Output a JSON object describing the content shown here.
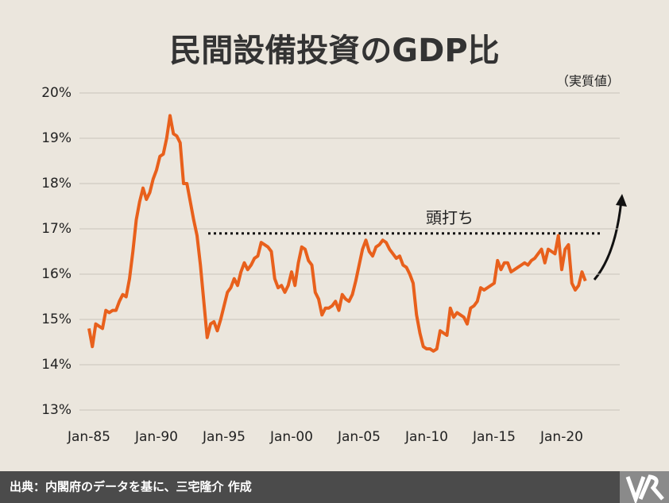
{
  "chart_data": {
    "type": "line",
    "title": "民間設備投資のGDP比",
    "subtitle": "（実質値）",
    "source": "出典：内閣府のデータを基に、三宅隆介 作成",
    "annotation": {
      "text": "頭打ち",
      "value": 16.9
    },
    "categories": [
      "Jan-85",
      null,
      null,
      null,
      null,
      null,
      null,
      null,
      null,
      null,
      null,
      null,
      null,
      null,
      null,
      null,
      null,
      null,
      null,
      null,
      "Jan-90",
      null,
      null,
      null,
      null,
      null,
      null,
      null,
      null,
      null,
      null,
      null,
      null,
      null,
      null,
      null,
      null,
      null,
      null,
      null,
      "Jan-95",
      null,
      null,
      null,
      null,
      null,
      null,
      null,
      null,
      null,
      null,
      null,
      null,
      null,
      null,
      null,
      null,
      null,
      null,
      null,
      "Jan-00",
      null,
      null,
      null,
      null,
      null,
      null,
      null,
      null,
      null,
      null,
      null,
      null,
      null,
      null,
      null,
      null,
      null,
      null,
      null,
      "Jan-05",
      null,
      null,
      null,
      null,
      null,
      null,
      null,
      null,
      null,
      null,
      null,
      null,
      null,
      null,
      null,
      null,
      null,
      null,
      null,
      "Jan-10",
      null,
      null,
      null,
      null,
      null,
      null,
      null,
      null,
      null,
      null,
      null,
      null,
      null,
      null,
      null,
      null,
      null,
      null,
      null,
      "Jan-15",
      null,
      null,
      null,
      null,
      null,
      null,
      null,
      null,
      null,
      null,
      null,
      null,
      null,
      null,
      null,
      null,
      null,
      null,
      null,
      "Jan-20",
      null,
      null,
      null,
      null,
      null,
      null,
      null
    ],
    "series": [
      {
        "color": "#e8601c",
        "values": [
          14.8,
          14.4,
          14.9,
          14.85,
          14.8,
          15.2,
          15.15,
          15.2,
          15.2,
          15.4,
          15.55,
          15.5,
          15.9,
          16.5,
          17.2,
          17.6,
          17.9,
          17.65,
          17.8,
          18.1,
          18.3,
          18.6,
          18.65,
          19.0,
          19.5,
          19.1,
          19.05,
          18.9,
          18.0,
          18.0,
          17.6,
          17.2,
          16.85,
          16.2,
          15.4,
          14.6,
          14.9,
          14.95,
          14.75,
          15.0,
          15.3,
          15.6,
          15.7,
          15.9,
          15.75,
          16.05,
          16.25,
          16.1,
          16.2,
          16.35,
          16.4,
          16.7,
          16.65,
          16.6,
          16.5,
          15.9,
          15.7,
          15.75,
          15.6,
          15.75,
          16.05,
          15.75,
          16.25,
          16.6,
          16.55,
          16.3,
          16.2,
          15.6,
          15.45,
          15.1,
          15.25,
          15.25,
          15.3,
          15.4,
          15.2,
          15.55,
          15.45,
          15.4,
          15.55,
          15.85,
          16.2,
          16.55,
          16.75,
          16.5,
          16.4,
          16.6,
          16.65,
          16.75,
          16.7,
          16.55,
          16.45,
          16.35,
          16.4,
          16.2,
          16.15,
          16.0,
          15.8,
          15.1,
          14.7,
          14.4,
          14.35,
          14.35,
          14.3,
          14.35,
          14.75,
          14.7,
          14.65,
          15.25,
          15.05,
          15.15,
          15.1,
          15.05,
          14.9,
          15.25,
          15.3,
          15.4,
          15.7,
          15.65,
          15.7,
          15.75,
          15.8,
          16.3,
          16.1,
          16.25,
          16.25,
          16.05,
          16.1,
          16.15,
          16.2,
          16.25,
          16.2,
          16.3,
          16.35,
          16.45,
          16.55,
          16.25,
          16.55,
          16.5,
          16.45,
          16.85,
          16.1,
          16.55,
          16.65,
          15.8,
          15.65,
          15.75,
          16.05,
          15.85
        ]
      }
    ],
    "ylim": [
      13,
      20
    ],
    "yticks": [
      {
        "value": 13,
        "label": "13%"
      },
      {
        "value": 14,
        "label": "14%"
      },
      {
        "value": 15,
        "label": "15%"
      },
      {
        "value": 16,
        "label": "16%"
      },
      {
        "value": 17,
        "label": "17%"
      },
      {
        "value": 18,
        "label": "18%"
      },
      {
        "value": 19,
        "label": "19%"
      },
      {
        "value": 20,
        "label": "20%"
      }
    ],
    "grid": true
  }
}
